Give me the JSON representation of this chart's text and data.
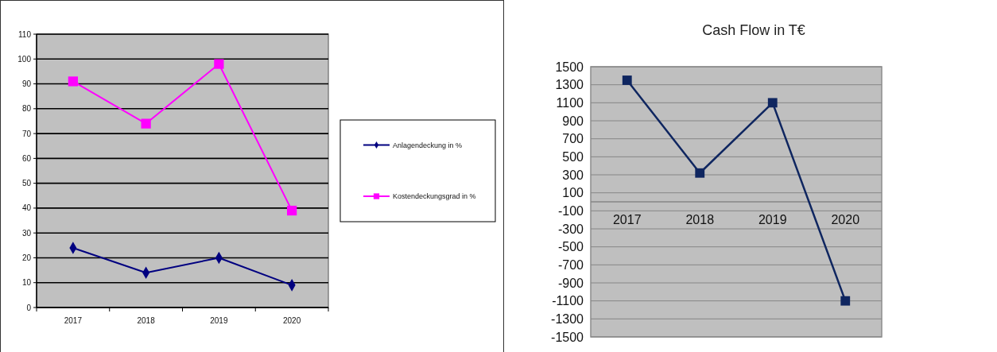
{
  "chart_data": [
    {
      "type": "line",
      "categories": [
        "2017",
        "2018",
        "2019",
        "2020"
      ],
      "series": [
        {
          "name": "Anlagendeckung in %",
          "color": "#000080",
          "marker": "diamond",
          "values": [
            24,
            14,
            20,
            9
          ]
        },
        {
          "name": "Kostendeckungsgrad in %",
          "color": "#ff00ff",
          "marker": "square",
          "values": [
            91,
            74,
            98,
            39
          ]
        }
      ],
      "ylim": [
        0,
        110
      ],
      "yticks": [
        0,
        10,
        20,
        30,
        40,
        50,
        60,
        70,
        80,
        90,
        100,
        110
      ],
      "grid": "y",
      "legend": "right"
    },
    {
      "type": "line",
      "title": "Cash Flow in T€",
      "categories": [
        "2017",
        "2018",
        "2019",
        "2020"
      ],
      "series": [
        {
          "color": "#0f2660",
          "marker": "square",
          "values": [
            1350,
            320,
            1100,
            -1100
          ]
        }
      ],
      "ylim": [
        -1500,
        1500
      ],
      "yticks": [
        -1500,
        -1300,
        -1100,
        -900,
        -700,
        -500,
        -300,
        -100,
        100,
        300,
        500,
        700,
        900,
        1100,
        1300,
        1500
      ],
      "grid": "y"
    }
  ]
}
